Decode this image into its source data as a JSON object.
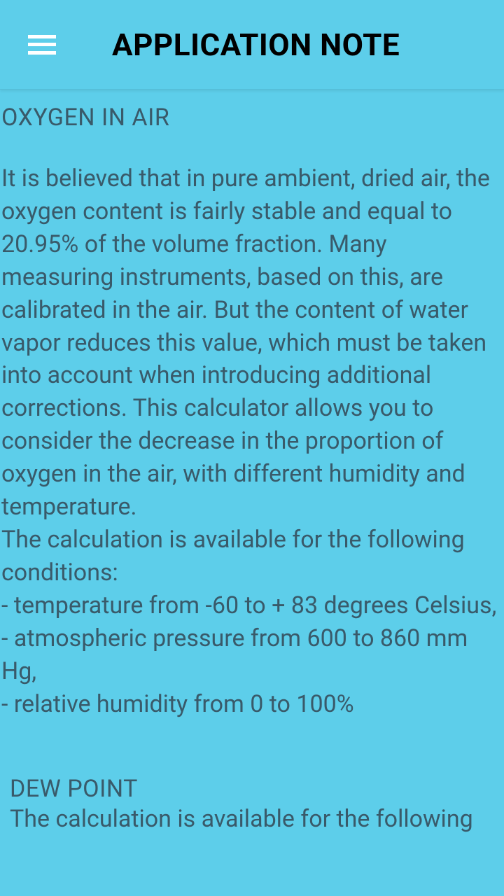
{
  "colors": {
    "background": "#5dceea",
    "header_bg": "#5dceea",
    "text": "#395a6a",
    "title": "#000000",
    "hamburger": "#ffffff"
  },
  "header": {
    "title": "APPLICATION NOTE"
  },
  "sections": [
    {
      "title": "OXYGEN IN AIR",
      "body": " It is believed that in pure ambient, dried air, the oxygen content is fairly stable and equal to 20.95% of the volume fraction. Many measuring instruments, based on this, are calibrated in the air. But the content of water vapor reduces this value, which must be taken into account when introducing additional corrections. This calculator allows you to consider the decrease in the proportion of oxygen in the air, with different humidity and temperature.\n The calculation is available for the following conditions:\n - temperature from -60 to + 83 degrees Celsius,\n - atmospheric pressure from 600 to 860 mm Hg,\n - relative humidity from 0 to 100%"
    },
    {
      "title": "DEW POINT",
      "body": "The calculation is available for the following"
    }
  ]
}
